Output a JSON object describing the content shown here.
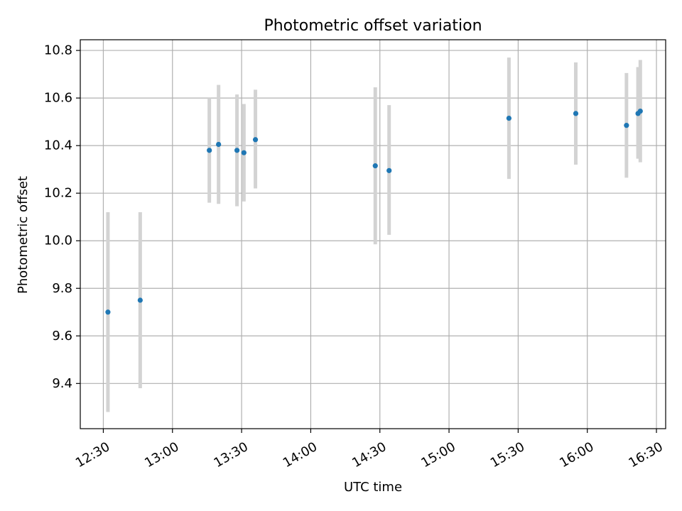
{
  "chart_data": {
    "type": "scatter",
    "title": "Photometric offset variation",
    "xlabel": "UTC time",
    "ylabel": "Photometric offset",
    "xlim": [
      "12:20",
      "16:34"
    ],
    "ylim": [
      9.21,
      10.845
    ],
    "grid": true,
    "x_ticks": [
      "12:30",
      "13:00",
      "13:30",
      "14:00",
      "14:30",
      "15:00",
      "15:30",
      "16:00",
      "16:30"
    ],
    "y_ticks": [
      9.4,
      9.6,
      9.8,
      10.0,
      10.2,
      10.4,
      10.6,
      10.8
    ],
    "colors": {
      "point": "#1f77b4",
      "errorbar": "#d3d3d3",
      "grid": "#b0b0b0"
    },
    "series": [
      {
        "points": [
          {
            "time": "12:32",
            "y": 9.7,
            "y_low": 9.28,
            "y_high": 10.12
          },
          {
            "time": "12:46",
            "y": 9.75,
            "y_low": 9.38,
            "y_high": 10.12
          },
          {
            "time": "13:16",
            "y": 10.38,
            "y_low": 10.16,
            "y_high": 10.6
          },
          {
            "time": "13:20",
            "y": 10.405,
            "y_low": 10.155,
            "y_high": 10.655
          },
          {
            "time": "13:28",
            "y": 10.38,
            "y_low": 10.145,
            "y_high": 10.615
          },
          {
            "time": "13:31",
            "y": 10.37,
            "y_low": 10.165,
            "y_high": 10.575
          },
          {
            "time": "13:36",
            "y": 10.425,
            "y_low": 10.22,
            "y_high": 10.635
          },
          {
            "time": "14:28",
            "y": 10.315,
            "y_low": 9.985,
            "y_high": 10.645
          },
          {
            "time": "14:34",
            "y": 10.295,
            "y_low": 10.025,
            "y_high": 10.57
          },
          {
            "time": "15:26",
            "y": 10.515,
            "y_low": 10.26,
            "y_high": 10.77
          },
          {
            "time": "15:55",
            "y": 10.535,
            "y_low": 10.32,
            "y_high": 10.75
          },
          {
            "time": "16:17",
            "y": 10.485,
            "y_low": 10.265,
            "y_high": 10.705
          },
          {
            "time": "16:22",
            "y": 10.535,
            "y_low": 10.345,
            "y_high": 10.73
          },
          {
            "time": "16:23",
            "y": 10.545,
            "y_low": 10.33,
            "y_high": 10.76
          }
        ]
      }
    ]
  }
}
